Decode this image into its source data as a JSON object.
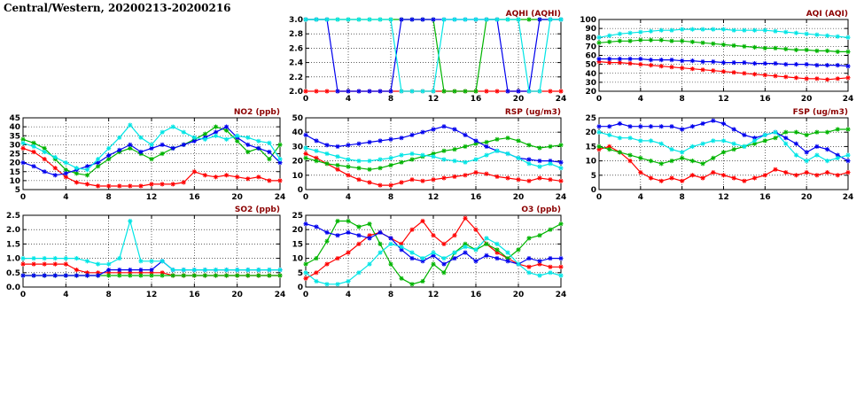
{
  "title": "Central/Western, 20200213-20200216",
  "chart_data": [
    {
      "id": "aqhi",
      "type": "line",
      "title": "AQHI (AQHI)",
      "xlabel": "",
      "ylabel": "",
      "xlim": [
        0,
        24
      ],
      "xticks": [
        0,
        4,
        8,
        12,
        16,
        20,
        24
      ],
      "ylim": [
        2.0,
        3.0
      ],
      "yticks": [
        "2.0",
        "2.2",
        "2.4",
        "2.6",
        "2.8",
        "3.0"
      ],
      "x": [
        0,
        1,
        2,
        3,
        4,
        5,
        6,
        7,
        8,
        9,
        10,
        11,
        12,
        13,
        14,
        15,
        16,
        17,
        18,
        19,
        20,
        21,
        22,
        23,
        24
      ],
      "series": [
        {
          "name": "red",
          "color": "#ff0000",
          "values": [
            2,
            2,
            2,
            2,
            2,
            2,
            2,
            2,
            2,
            2,
            2,
            2,
            2,
            2,
            2,
            2,
            2,
            2,
            2,
            2,
            2,
            2,
            2,
            2,
            2
          ]
        },
        {
          "name": "green",
          "color": "#00b400",
          "values": [
            3,
            3,
            3,
            3,
            3,
            3,
            3,
            3,
            3,
            3,
            3,
            3,
            3,
            2,
            2,
            2,
            2,
            3,
            3,
            3,
            3,
            3,
            3,
            3,
            3
          ]
        },
        {
          "name": "blue",
          "color": "#0000ee",
          "values": [
            3,
            3,
            3,
            2,
            2,
            2,
            2,
            2,
            2,
            3,
            3,
            3,
            3,
            3,
            3,
            3,
            3,
            3,
            3,
            2,
            2,
            2,
            3,
            3,
            3
          ]
        },
        {
          "name": "cyan",
          "color": "#00e5e5",
          "values": [
            3,
            3,
            3,
            3,
            3,
            3,
            3,
            3,
            3,
            2,
            2,
            2,
            2,
            3,
            3,
            3,
            3,
            3,
            3,
            3,
            3,
            2,
            2,
            3,
            3
          ]
        }
      ]
    },
    {
      "id": "aqi",
      "type": "line",
      "title": "AQI (AQI)",
      "xlabel": "",
      "ylabel": "",
      "xlim": [
        0,
        24
      ],
      "xticks": [
        0,
        4,
        8,
        12,
        16,
        20,
        24
      ],
      "ylim": [
        20,
        100
      ],
      "yticks": [
        "20",
        "30",
        "40",
        "50",
        "60",
        "70",
        "80",
        "90",
        "100"
      ],
      "x": [
        0,
        1,
        2,
        3,
        4,
        5,
        6,
        7,
        8,
        9,
        10,
        11,
        12,
        13,
        14,
        15,
        16,
        17,
        18,
        19,
        20,
        21,
        22,
        23,
        24
      ],
      "series": [
        {
          "name": "red",
          "color": "#ff0000",
          "values": [
            53,
            52,
            52,
            51,
            50,
            49,
            48,
            47,
            46,
            45,
            44,
            43,
            42,
            41,
            40,
            39,
            38,
            37,
            36,
            35,
            34,
            34,
            33,
            34,
            35
          ]
        },
        {
          "name": "green",
          "color": "#00b400",
          "values": [
            74,
            75,
            76,
            76,
            77,
            77,
            77,
            76,
            76,
            75,
            74,
            73,
            72,
            71,
            70,
            69,
            68,
            68,
            67,
            66,
            66,
            65,
            65,
            64,
            64
          ]
        },
        {
          "name": "blue",
          "color": "#0000ee",
          "values": [
            56,
            56,
            56,
            56,
            56,
            55,
            55,
            55,
            54,
            54,
            53,
            53,
            52,
            52,
            52,
            51,
            51,
            51,
            50,
            50,
            50,
            49,
            49,
            49,
            48
          ]
        },
        {
          "name": "cyan",
          "color": "#00e5e5",
          "values": [
            80,
            82,
            84,
            85,
            86,
            87,
            88,
            88,
            89,
            89,
            89,
            89,
            89,
            88,
            88,
            88,
            88,
            87,
            86,
            85,
            84,
            83,
            82,
            81,
            80
          ]
        }
      ]
    },
    {
      "id": "no2",
      "type": "line",
      "title": "NO2 (ppb)",
      "xlabel": "",
      "ylabel": "",
      "xlim": [
        0,
        24
      ],
      "xticks": [
        0,
        4,
        8,
        12,
        16,
        20,
        24
      ],
      "ylim": [
        5,
        45
      ],
      "yticks": [
        "5",
        "10",
        "15",
        "20",
        "25",
        "30",
        "35",
        "40",
        "45"
      ],
      "x": [
        0,
        1,
        2,
        3,
        4,
        5,
        6,
        7,
        8,
        9,
        10,
        11,
        12,
        13,
        14,
        15,
        16,
        17,
        18,
        19,
        20,
        21,
        22,
        23,
        24
      ],
      "series": [
        {
          "name": "red",
          "color": "#ff0000",
          "values": [
            28,
            26,
            22,
            17,
            12,
            9,
            8,
            7,
            7,
            7,
            7,
            7,
            8,
            8,
            8,
            9,
            15,
            13,
            12,
            13,
            12,
            11,
            12,
            10,
            10
          ]
        },
        {
          "name": "green",
          "color": "#00b400",
          "values": [
            33,
            31,
            28,
            22,
            16,
            14,
            13,
            18,
            22,
            26,
            28,
            25,
            22,
            25,
            28,
            30,
            33,
            36,
            40,
            38,
            32,
            26,
            28,
            22,
            30
          ]
        },
        {
          "name": "blue",
          "color": "#0000ee",
          "values": [
            20,
            18,
            15,
            13,
            14,
            16,
            18,
            20,
            24,
            27,
            30,
            26,
            28,
            30,
            28,
            30,
            32,
            34,
            37,
            40,
            34,
            30,
            28,
            26,
            20
          ]
        },
        {
          "name": "cyan",
          "color": "#00e5e5",
          "values": [
            31,
            29,
            26,
            23,
            20,
            17,
            16,
            22,
            28,
            34,
            41,
            34,
            30,
            37,
            40,
            37,
            34,
            33,
            35,
            33,
            35,
            34,
            32,
            31,
            22
          ]
        }
      ]
    },
    {
      "id": "rsp",
      "type": "line",
      "title": "RSP (ug/m3)",
      "xlabel": "",
      "ylabel": "",
      "xlim": [
        0,
        24
      ],
      "xticks": [
        0,
        4,
        8,
        12,
        16,
        20,
        24
      ],
      "ylim": [
        0,
        50
      ],
      "yticks": [
        "0",
        "10",
        "20",
        "30",
        "40",
        "50"
      ],
      "x": [
        0,
        1,
        2,
        3,
        4,
        5,
        6,
        7,
        8,
        9,
        10,
        11,
        12,
        13,
        14,
        15,
        16,
        17,
        18,
        19,
        20,
        21,
        22,
        23,
        24
      ],
      "series": [
        {
          "name": "red",
          "color": "#ff0000",
          "values": [
            25,
            22,
            18,
            14,
            10,
            7,
            5,
            3,
            3,
            5,
            7,
            6,
            7,
            8,
            9,
            10,
            12,
            11,
            9,
            8,
            7,
            6,
            8,
            7,
            6
          ]
        },
        {
          "name": "green",
          "color": "#00b400",
          "values": [
            22,
            20,
            18,
            17,
            16,
            15,
            14,
            15,
            17,
            19,
            21,
            23,
            25,
            27,
            28,
            30,
            32,
            33,
            35,
            36,
            34,
            31,
            29,
            30,
            31
          ]
        },
        {
          "name": "blue",
          "color": "#0000ee",
          "values": [
            38,
            34,
            31,
            30,
            31,
            32,
            33,
            34,
            35,
            36,
            38,
            40,
            42,
            44,
            42,
            38,
            34,
            30,
            27,
            25,
            22,
            21,
            20,
            20,
            19
          ]
        },
        {
          "name": "cyan",
          "color": "#00e5e5",
          "values": [
            29,
            27,
            25,
            23,
            21,
            20,
            20,
            21,
            22,
            24,
            25,
            24,
            23,
            21,
            20,
            19,
            21,
            24,
            27,
            25,
            22,
            18,
            16,
            18,
            15
          ]
        }
      ]
    },
    {
      "id": "fsp",
      "type": "line",
      "title": "FSP (ug/m3)",
      "xlabel": "",
      "ylabel": "",
      "xlim": [
        0,
        24
      ],
      "xticks": [
        0,
        4,
        8,
        12,
        16,
        20,
        24
      ],
      "ylim": [
        0,
        25
      ],
      "yticks": [
        "0",
        "5",
        "10",
        "15",
        "20",
        "25"
      ],
      "x": [
        0,
        1,
        2,
        3,
        4,
        5,
        6,
        7,
        8,
        9,
        10,
        11,
        12,
        13,
        14,
        15,
        16,
        17,
        18,
        19,
        20,
        21,
        22,
        23,
        24
      ],
      "series": [
        {
          "name": "red",
          "color": "#ff0000",
          "values": [
            14,
            15,
            13,
            10,
            6,
            4,
            3,
            4,
            3,
            5,
            4,
            6,
            5,
            4,
            3,
            4,
            5,
            7,
            6,
            5,
            6,
            5,
            6,
            5,
            6
          ]
        },
        {
          "name": "green",
          "color": "#00b400",
          "values": [
            15,
            14,
            13,
            12,
            11,
            10,
            9,
            10,
            11,
            10,
            9,
            11,
            13,
            14,
            15,
            16,
            17,
            18,
            20,
            20,
            19,
            20,
            20,
            21,
            21
          ]
        },
        {
          "name": "blue",
          "color": "#0000ee",
          "values": [
            22,
            22,
            23,
            22,
            22,
            22,
            22,
            22,
            21,
            22,
            23,
            24,
            23,
            21,
            19,
            18,
            19,
            20,
            18,
            16,
            13,
            15,
            14,
            12,
            10
          ]
        },
        {
          "name": "cyan",
          "color": "#00e5e5",
          "values": [
            20,
            19,
            18,
            18,
            17,
            17,
            16,
            14,
            13,
            15,
            16,
            17,
            17,
            16,
            15,
            17,
            19,
            20,
            16,
            12,
            10,
            12,
            10,
            11,
            12
          ]
        }
      ]
    },
    {
      "id": "so2",
      "type": "line",
      "title": "SO2 (ppb)",
      "xlabel": "",
      "ylabel": "",
      "xlim": [
        0,
        24
      ],
      "xticks": [
        0,
        4,
        8,
        12,
        16,
        20,
        24
      ],
      "ylim": [
        0.0,
        2.5
      ],
      "yticks": [
        "0.0",
        "0.5",
        "1.0",
        "1.5",
        "2.0",
        "2.5"
      ],
      "x": [
        0,
        1,
        2,
        3,
        4,
        5,
        6,
        7,
        8,
        9,
        10,
        11,
        12,
        13,
        14,
        15,
        16,
        17,
        18,
        19,
        20,
        21,
        22,
        23,
        24
      ],
      "series": [
        {
          "name": "red",
          "color": "#ff0000",
          "values": [
            0.8,
            0.8,
            0.8,
            0.8,
            0.8,
            0.6,
            0.5,
            0.5,
            0.5,
            0.5,
            0.5,
            0.5,
            0.5,
            0.5,
            0.4,
            0.4,
            0.4,
            0.4,
            0.4,
            0.4,
            0.4,
            0.4,
            0.4,
            0.4,
            0.4
          ]
        },
        {
          "name": "green",
          "color": "#00b400",
          "values": [
            0.4,
            0.4,
            0.4,
            0.4,
            0.4,
            0.4,
            0.4,
            0.4,
            0.4,
            0.4,
            0.4,
            0.4,
            0.4,
            0.4,
            0.4,
            0.4,
            0.4,
            0.4,
            0.4,
            0.4,
            0.4,
            0.4,
            0.4,
            0.4,
            0.4
          ]
        },
        {
          "name": "blue",
          "color": "#0000ee",
          "values": [
            0.4,
            0.4,
            0.4,
            0.4,
            0.4,
            0.4,
            0.4,
            0.4,
            0.6,
            0.6,
            0.6,
            0.6,
            0.6,
            0.9,
            0.6,
            0.6,
            0.6,
            0.6,
            0.6,
            0.6,
            0.6,
            0.6,
            0.6,
            0.6,
            0.6
          ]
        },
        {
          "name": "cyan",
          "color": "#00e5e5",
          "values": [
            1.0,
            1.0,
            1.0,
            1.0,
            1.0,
            1.0,
            0.9,
            0.8,
            0.8,
            1.0,
            2.3,
            0.9,
            0.9,
            0.9,
            0.6,
            0.6,
            0.6,
            0.6,
            0.6,
            0.6,
            0.6,
            0.6,
            0.6,
            0.6,
            0.6
          ]
        }
      ]
    },
    {
      "id": "o3",
      "type": "line",
      "title": "O3 (ppb)",
      "xlabel": "",
      "ylabel": "",
      "xlim": [
        0,
        24
      ],
      "xticks": [
        0,
        4,
        8,
        12,
        16,
        20,
        24
      ],
      "ylim": [
        0,
        25
      ],
      "yticks": [
        "0",
        "5",
        "10",
        "15",
        "20",
        "25"
      ],
      "x": [
        0,
        1,
        2,
        3,
        4,
        5,
        6,
        7,
        8,
        9,
        10,
        11,
        12,
        13,
        14,
        15,
        16,
        17,
        18,
        19,
        20,
        21,
        22,
        23,
        24
      ],
      "series": [
        {
          "name": "red",
          "color": "#ff0000",
          "values": [
            3,
            5,
            8,
            10,
            12,
            15,
            18,
            19,
            17,
            15,
            20,
            23,
            18,
            15,
            18,
            24,
            20,
            15,
            12,
            10,
            8,
            7,
            8,
            7,
            7
          ]
        },
        {
          "name": "green",
          "color": "#00b400",
          "values": [
            8,
            10,
            16,
            23,
            23,
            21,
            22,
            15,
            8,
            3,
            1,
            2,
            8,
            5,
            12,
            15,
            13,
            15,
            13,
            10,
            13,
            17,
            18,
            20,
            22
          ]
        },
        {
          "name": "blue",
          "color": "#0000ee",
          "values": [
            22,
            21,
            19,
            18,
            19,
            18,
            17,
            19,
            17,
            13,
            10,
            9,
            11,
            8,
            10,
            12,
            9,
            11,
            10,
            9,
            8,
            10,
            9,
            10,
            10
          ]
        },
        {
          "name": "cyan",
          "color": "#00e5e5",
          "values": [
            5,
            2,
            1,
            1,
            2,
            5,
            8,
            12,
            15,
            14,
            12,
            10,
            12,
            10,
            12,
            14,
            13,
            17,
            15,
            12,
            8,
            5,
            4,
            5,
            4
          ]
        }
      ]
    }
  ]
}
